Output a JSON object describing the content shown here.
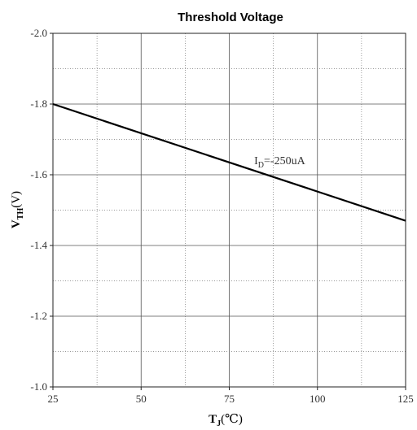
{
  "chart_data": {
    "type": "line",
    "title": "Threshold Voltage",
    "xlabel": {
      "main": "T",
      "sub": "J",
      "unit": "(℃)"
    },
    "ylabel": {
      "main": "V",
      "sub": "TH",
      "unit": "(V)"
    },
    "xlim": [
      25,
      125
    ],
    "ylim": [
      -1.0,
      -2.0
    ],
    "x_ticks": [
      "25",
      "50",
      "75",
      "100",
      "125"
    ],
    "y_ticks": [
      "-2.0",
      "-1.8",
      "-1.6",
      "-1.4",
      "-1.2",
      "-1.0"
    ],
    "grid": true,
    "series": [
      {
        "x": [
          25,
          125
        ],
        "y": [
          -1.8,
          -1.47
        ]
      }
    ],
    "annotation": {
      "main": "I",
      "sub": "D",
      "text": "=-250uA",
      "x": 86,
      "y": -1.63
    }
  }
}
